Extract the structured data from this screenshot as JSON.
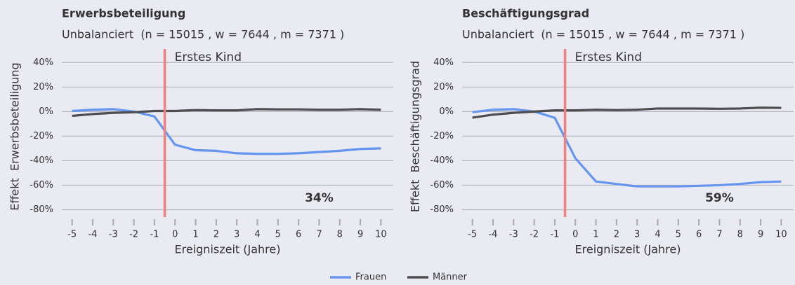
{
  "chart_data": [
    {
      "type": "line",
      "title": "Erwerbsbeteiligung",
      "subtitle": "Unbalanciert  (n = 15015 , w = 7644 , m = 7371 )",
      "x_label": "Ereigniszeit (Jahre)",
      "y_label": "Effekt  Erwerbsbeteiligung",
      "x": [
        -5,
        -4,
        -3,
        -2,
        -1,
        0,
        1,
        2,
        3,
        4,
        5,
        6,
        7,
        8,
        9,
        10
      ],
      "xlim": [
        -5.5,
        10.6
      ],
      "xticks": [
        -5,
        -4,
        -3,
        -2,
        -1,
        0,
        1,
        2,
        3,
        4,
        5,
        6,
        7,
        8,
        9,
        10
      ],
      "ylim": [
        -86,
        51
      ],
      "yticks": [
        {
          "value": 40,
          "label": "40%"
        },
        {
          "value": 20,
          "label": "20%"
        },
        {
          "value": 0,
          "label": "0%"
        },
        {
          "value": -20,
          "label": "-20%"
        },
        {
          "value": -40,
          "label": "-40%"
        },
        {
          "value": -60,
          "label": "-60%"
        },
        {
          "value": -80,
          "label": "-80%"
        }
      ],
      "event_line": {
        "x": -0.5,
        "label": "Erstes Kind",
        "color": "#f08080"
      },
      "effect": {
        "value": 34,
        "label": "34%"
      },
      "series": [
        {
          "values": [
            0.5,
            1.5,
            2,
            0,
            -4,
            -27,
            -31.5,
            -32,
            -34,
            -34.5,
            -34.5,
            -34,
            -33,
            -32,
            -30.5,
            -30
          ]
        },
        {
          "values": [
            -3.5,
            -2,
            -1,
            -0.5,
            0.5,
            0.5,
            1.2,
            1,
            1,
            2,
            1.8,
            1.8,
            1.5,
            1.5,
            2,
            1.5
          ]
        }
      ]
    },
    {
      "type": "line",
      "title": "Beschäftigungsgrad",
      "subtitle": "Unbalanciert  (n = 15015 , w = 7644 , m = 7371 )",
      "x_label": "Ereigniszeit (Jahre)",
      "y_label": "Effekt  Beschäftigungsgrad",
      "x": [
        -5,
        -4,
        -3,
        -2,
        -1,
        0,
        1,
        2,
        3,
        4,
        5,
        6,
        7,
        8,
        9,
        10
      ],
      "xlim": [
        -5.5,
        10.6
      ],
      "xticks": [
        -5,
        -4,
        -3,
        -2,
        -1,
        0,
        1,
        2,
        3,
        4,
        5,
        6,
        7,
        8,
        9,
        10
      ],
      "ylim": [
        -86,
        51
      ],
      "yticks": [
        {
          "value": 40,
          "label": "40%"
        },
        {
          "value": 20,
          "label": "20%"
        },
        {
          "value": 0,
          "label": "0%"
        },
        {
          "value": -20,
          "label": "-20%"
        },
        {
          "value": -40,
          "label": "-40%"
        },
        {
          "value": -60,
          "label": "-60%"
        },
        {
          "value": -80,
          "label": "-80%"
        }
      ],
      "event_line": {
        "x": -0.5,
        "label": "Erstes Kind",
        "color": "#f08080"
      },
      "effect": {
        "value": 59,
        "label": "59%"
      },
      "series": [
        {
          "values": [
            -0.5,
            1.5,
            2,
            0,
            -5,
            -38,
            -57,
            -59,
            -61,
            -61,
            -61,
            -60.5,
            -60,
            -59,
            -57.5,
            -57
          ]
        },
        {
          "values": [
            -5,
            -2.5,
            -1,
            0,
            1,
            1,
            1.5,
            1.2,
            1.5,
            2.5,
            2.5,
            2.5,
            2.3,
            2.5,
            3.2,
            3
          ]
        }
      ]
    }
  ],
  "legend": [
    {
      "name": "Frauen",
      "color": "#6495f0"
    },
    {
      "name": "Männer",
      "color": "#4d4d4f"
    }
  ]
}
